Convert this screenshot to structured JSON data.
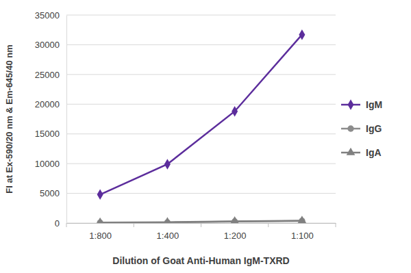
{
  "chart_data": {
    "type": "line",
    "x_label": "Dilution of Goat Anti-Human IgM-TXRD",
    "y_label": "FI at Ex-590/20 nm & Em-645/40 nm",
    "categories": [
      "1:800",
      "1:400",
      "1:200",
      "1:100"
    ],
    "series": [
      {
        "name": "IgM",
        "color": "#5c2d9c",
        "marker": "diamond",
        "values": [
          4800,
          9900,
          18800,
          31700
        ]
      },
      {
        "name": "IgG",
        "color": "#8c8c8c",
        "marker": "circle",
        "values": [
          50,
          100,
          250,
          350
        ]
      },
      {
        "name": "IgA",
        "color": "#808080",
        "marker": "triangle",
        "values": [
          100,
          150,
          300,
          400
        ]
      }
    ],
    "ylim": [
      0,
      35000
    ],
    "yticks": [
      0,
      5000,
      10000,
      15000,
      20000,
      25000,
      30000,
      35000
    ],
    "grid": true,
    "legend": "right"
  }
}
